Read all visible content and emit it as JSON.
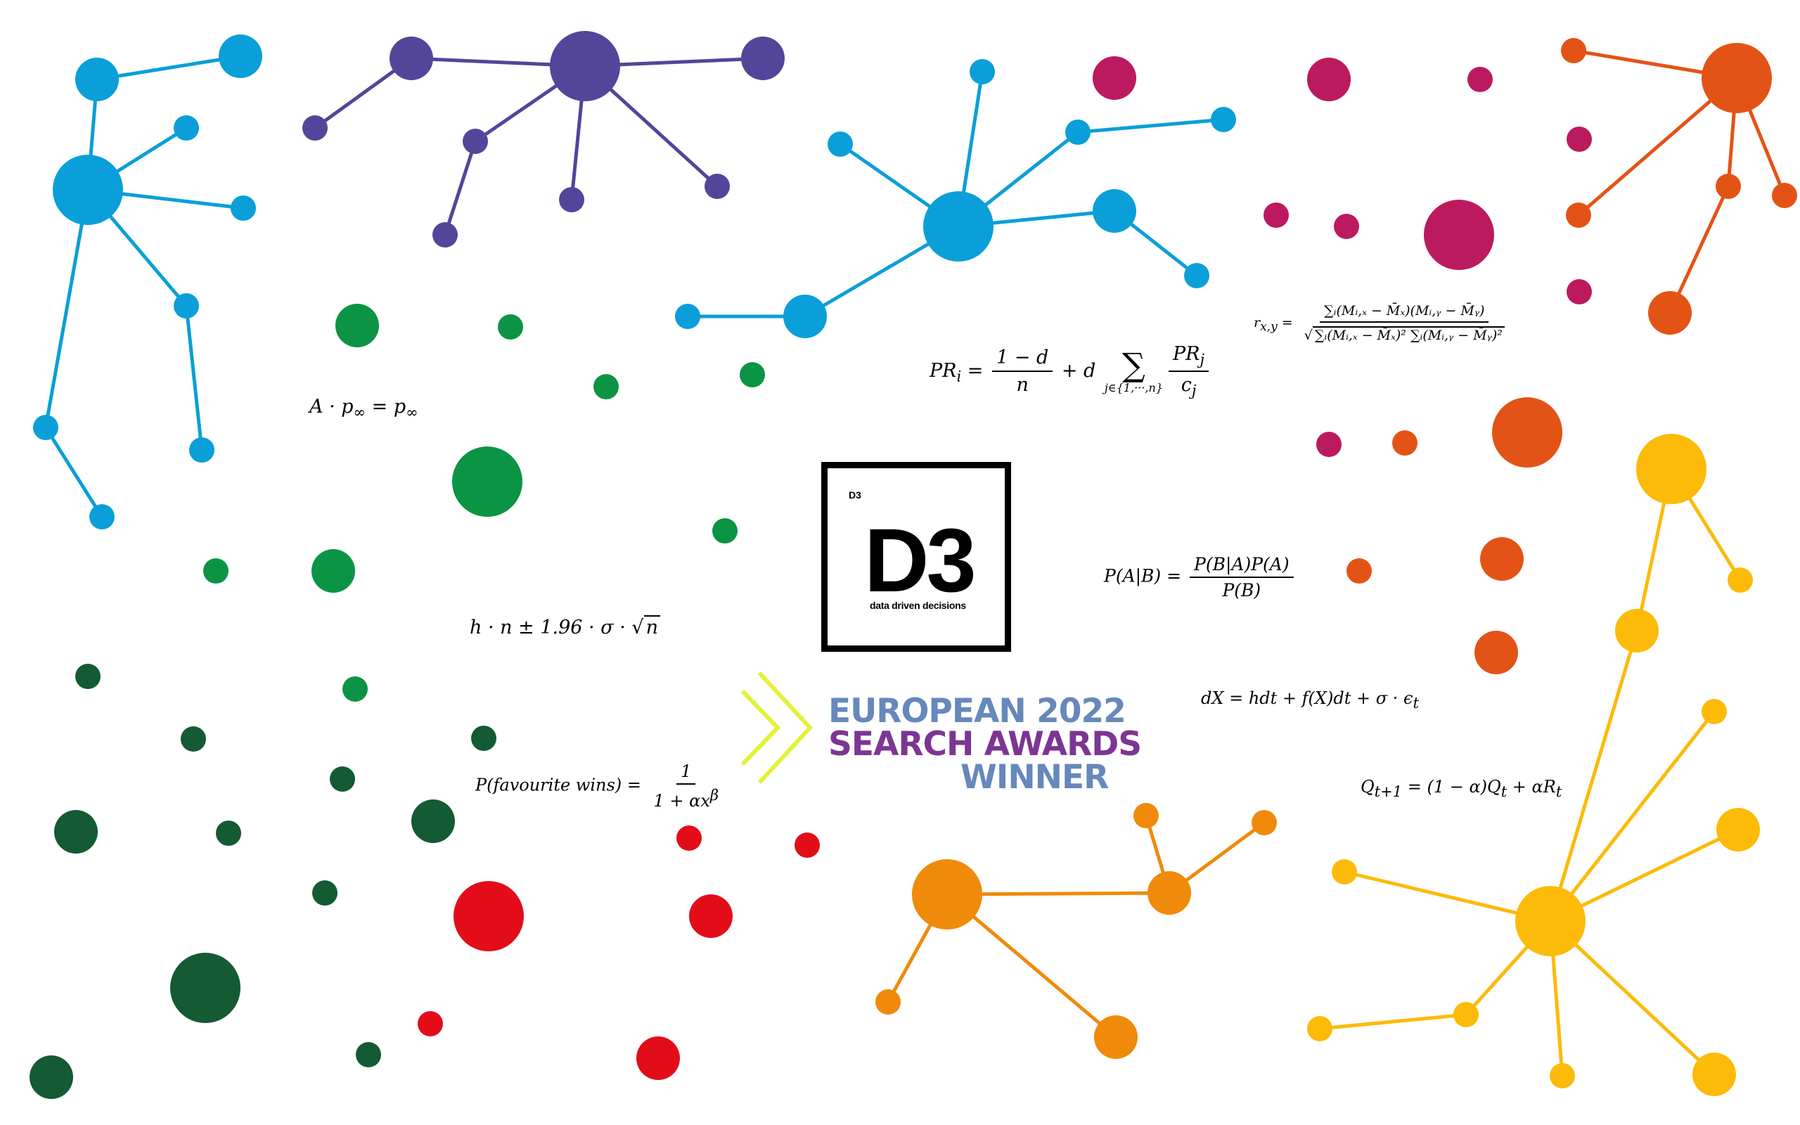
{
  "palette": {
    "blue": "#0a9fd8",
    "purple": "#53459a",
    "green": "#0a9444",
    "dark_green": "#145a32",
    "magenta": "#bc1a5e",
    "orange_red": "#e45316",
    "red": "#e30d1a",
    "orange": "#f08a0a",
    "yellow": "#fcbb08",
    "award_blue": "#6688bb",
    "award_purple": "#7c3593",
    "award_chevron": "#e4f23a"
  },
  "logo": {
    "small_text": "D3",
    "big_text": "D3",
    "tagline": "data driven decisions"
  },
  "award": {
    "line1": "EUROPEAN 2022",
    "line2": "SEARCH AWARDS",
    "line3": "WINNER"
  },
  "formulas": {
    "stationary": {
      "lhs": "A · p",
      "sub1": "∞",
      "eq": " = p",
      "sub2": "∞"
    },
    "pagerank": {
      "lhs": "PR",
      "lhs_sub": "i",
      "eq": " = ",
      "num": "1 − d",
      "den": "n",
      "plus": " + d ",
      "sum_under": "j∈{1,···,n}",
      "frac2_num": "PR",
      "frac2_num_sub": "j",
      "frac2_den": "c",
      "frac2_den_sub": "j"
    },
    "correlation": {
      "lhs": "r",
      "lhs_sub": "x,y",
      "eq": " = ",
      "num": "∑ᵢ(Mᵢ,ₓ − M̄ₓ)(Mᵢ,ᵧ − M̄ᵧ)",
      "den": "∑ᵢ(Mᵢ,ₓ − M̄ₓ)² ∑ᵢ(Mᵢ,ᵧ − M̄ᵧ)²"
    },
    "bayes": {
      "lhs": "P(A|B) = ",
      "num": "P(B|A)P(A)",
      "den": "P(B)"
    },
    "interval": {
      "text": "h · n ± 1.96 · σ · ",
      "root": "n"
    },
    "sde": {
      "text": "dX = hdt + f(X)dt + σ · ϵ",
      "sub": "t"
    },
    "favourite": {
      "lhs": "P(favourite wins) = ",
      "num": "1",
      "den": "1 + αx",
      "den_sup": "β"
    },
    "qlearning": {
      "q": "Q",
      "q_sub": "t+1",
      "mid": " = (1 − α)Q",
      "mid_sub": "t",
      "tail": " + αR",
      "tail_sub": "t"
    }
  }
}
